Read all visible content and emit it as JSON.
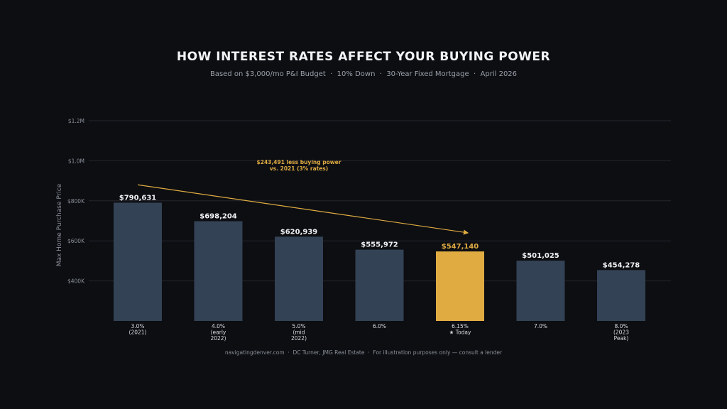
{
  "title": "HOW INTEREST RATES AFFECT YOUR BUYING POWER",
  "subtitle": "Based on $3,000/mo P&I Budget  ·  10% Down  ·  30-Year Fixed Mortgage  ·  April 2026",
  "footer": "navigatingdenver.com  ·  DC Turner, JMG Real Estate  ·  For illustration purposes only — consult a lender",
  "colors": {
    "background": "#0d0e12",
    "bar": "#334255",
    "highlight": "#e0ac42",
    "gridline": "#24262c",
    "axis_text": "#8a909a",
    "label_text": "#f2f3f5"
  },
  "chart_data": {
    "type": "bar",
    "ylabel": "Max Home Purchase Price",
    "xlabel": "",
    "ylim": [
      200000,
      1200000
    ],
    "yticks": [
      400000,
      600000,
      800000,
      1000000,
      1200000
    ],
    "ytick_labels": [
      "$400K",
      "$600K",
      "$800K",
      "$1.0M",
      "$1.2M"
    ],
    "grid": true,
    "categories": [
      [
        "3.0%",
        "(2021)"
      ],
      [
        "4.0%",
        "(early",
        "2022)"
      ],
      [
        "5.0%",
        "(mid",
        "2022)"
      ],
      [
        "6.0%"
      ],
      [
        "6.15%",
        "★ Today"
      ],
      [
        "7.0%"
      ],
      [
        "8.0%",
        "(2023",
        "Peak)"
      ]
    ],
    "values": [
      790631,
      698204,
      620939,
      555972,
      547140,
      501025,
      454278
    ],
    "value_labels": [
      "$790,631",
      "$698,204",
      "$620,939",
      "$555,972",
      "$547,140",
      "$501,025",
      "$454,278"
    ],
    "highlight_index": 4,
    "annotation": {
      "lines": [
        "$243,491 less buying power",
        "vs. 2021 (3% rates)"
      ],
      "from_value": 880000,
      "to_value": 640000,
      "from_index": 0,
      "to_index": 4
    }
  }
}
